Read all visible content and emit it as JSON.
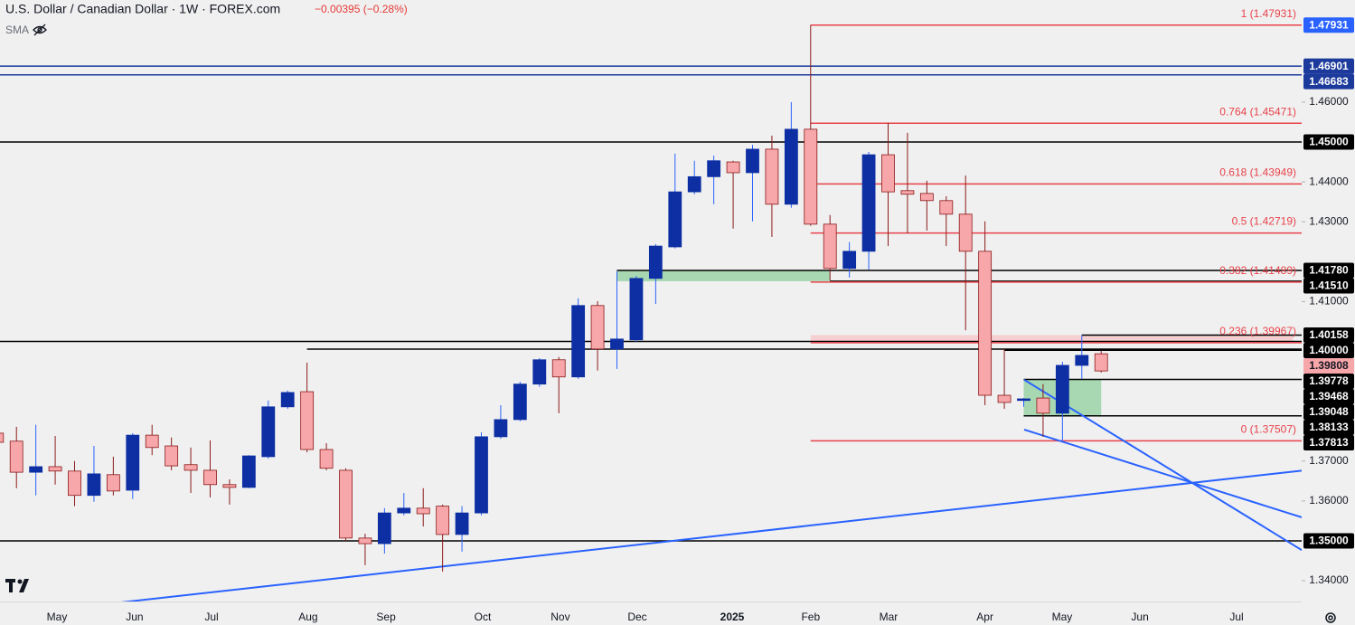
{
  "chart_data": {
    "type": "candlestick",
    "title": "U.S. Dollar / Canadian Dollar · 1W · FOREX.com",
    "change": "−0.00395 (−0.28%)",
    "indicator": "SMA",
    "xlim": [
      0.15,
      67.35
    ],
    "ylim": [
      1.3348,
      1.4856
    ],
    "yticks": [
      {
        "value": 1.46,
        "label": "1.46000"
      },
      {
        "value": 1.44,
        "label": "1.44000"
      },
      {
        "value": 1.43,
        "label": "1.43000"
      },
      {
        "value": 1.41,
        "label": "1.41000"
      },
      {
        "value": 1.37,
        "label": "1.37000"
      },
      {
        "value": 1.36,
        "label": "1.36000"
      },
      {
        "value": 1.34,
        "label": "1.34000"
      }
    ],
    "xticks": [
      {
        "value": 3.09,
        "label": "May"
      },
      {
        "value": 7.1,
        "label": "Jun"
      },
      {
        "value": 11.07,
        "label": "Jul"
      },
      {
        "value": 16.06,
        "label": "Aug"
      },
      {
        "value": 20.08,
        "label": "Sep"
      },
      {
        "value": 25.07,
        "label": "Oct"
      },
      {
        "value": 29.08,
        "label": "Nov"
      },
      {
        "value": 33.05,
        "label": "Dec"
      },
      {
        "value": 37.95,
        "label": "2025",
        "bold": true
      },
      {
        "value": 42.0,
        "label": "Feb"
      },
      {
        "value": 46.02,
        "label": "Mar"
      },
      {
        "value": 51.0,
        "label": "Apr"
      },
      {
        "value": 54.98,
        "label": "May"
      },
      {
        "value": 59.0,
        "label": "Jun"
      },
      {
        "value": 63.99,
        "label": "Jul"
      }
    ],
    "up_color": "#0d2fa3",
    "up_wick": "#2962ff",
    "down_color": "#f7a6aa",
    "down_wick": "#8b1a1a",
    "candles": {
      "x": [
        0,
        1,
        2,
        3,
        4,
        5,
        6,
        7,
        8,
        9,
        10,
        11,
        12,
        13,
        14,
        15,
        16,
        17,
        18,
        19,
        20,
        21,
        22,
        23,
        24,
        25,
        26,
        27,
        28,
        29,
        30,
        31,
        32,
        33,
        34,
        35,
        36,
        37,
        38,
        39,
        40,
        41,
        42,
        43,
        44,
        45,
        46,
        47,
        48,
        49,
        50,
        51,
        52,
        53,
        54,
        55,
        56,
        57
      ],
      "open": [
        1.377,
        1.375,
        1.3672,
        1.3686,
        1.3675,
        1.3614,
        1.3666,
        1.3627,
        1.3765,
        1.3738,
        1.3691,
        1.3677,
        1.3641,
        1.3634,
        1.3711,
        1.3836,
        1.3874,
        1.3729,
        1.3677,
        1.3507,
        1.3493,
        1.357,
        1.3582,
        1.3587,
        1.3516,
        1.357,
        1.3761,
        1.3804,
        1.3893,
        1.3954,
        1.3911,
        1.409,
        1.3981,
        1.4004,
        1.4158,
        1.4237,
        1.4375,
        1.4413,
        1.445,
        1.4423,
        1.4482,
        1.4344,
        1.4532,
        1.4294,
        1.4183,
        1.4226,
        1.4468,
        1.4378,
        1.4371,
        1.4353,
        1.4319,
        1.4226,
        1.3865,
        1.3852,
        1.3858,
        1.382,
        1.394,
        1.3969
      ],
      "high": [
        1.3786,
        1.3786,
        1.3791,
        1.3763,
        1.37,
        1.3738,
        1.3711,
        1.377,
        1.3791,
        1.3759,
        1.3734,
        1.3752,
        1.3654,
        1.3715,
        1.3852,
        1.3877,
        1.3947,
        1.3745,
        1.3682,
        1.3518,
        1.3582,
        1.362,
        1.3632,
        1.3591,
        1.3587,
        1.3772,
        1.384,
        1.3899,
        1.3958,
        1.3961,
        1.4108,
        1.4101,
        1.4176,
        1.4164,
        1.4244,
        1.4471,
        1.4453,
        1.4466,
        1.4453,
        1.4493,
        1.4516,
        1.46,
        1.4793,
        1.4317,
        1.4249,
        1.4475,
        1.4548,
        1.4523,
        1.4403,
        1.4364,
        1.4416,
        1.4301,
        1.3981,
        1.3858,
        1.3893,
        1.3949,
        1.4016,
        1.3976
      ],
      "low": [
        1.3734,
        1.3632,
        1.3614,
        1.3641,
        1.3587,
        1.3598,
        1.3614,
        1.3605,
        1.3715,
        1.3677,
        1.362,
        1.3609,
        1.3591,
        1.3632,
        1.3706,
        1.3831,
        1.3722,
        1.3677,
        1.35,
        1.3439,
        1.3468,
        1.3564,
        1.3536,
        1.3423,
        1.3473,
        1.3564,
        1.3756,
        1.38,
        1.3886,
        1.382,
        1.3906,
        1.3927,
        1.3931,
        1.3999,
        1.4094,
        1.4233,
        1.4369,
        1.4344,
        1.4283,
        1.4301,
        1.4262,
        1.4335,
        1.429,
        1.4153,
        1.416,
        1.418,
        1.4239,
        1.4271,
        1.4278,
        1.4239,
        1.4028,
        1.384,
        1.3831,
        1.3836,
        1.3761,
        1.375,
        1.3906,
        1.3922
      ],
      "close": [
        1.3747,
        1.3672,
        1.3686,
        1.3675,
        1.3614,
        1.3668,
        1.3625,
        1.3765,
        1.3734,
        1.3688,
        1.3677,
        1.3641,
        1.3634,
        1.3713,
        1.3836,
        1.3872,
        1.3729,
        1.3682,
        1.3507,
        1.3493,
        1.357,
        1.3582,
        1.3568,
        1.3516,
        1.357,
        1.3761,
        1.3804,
        1.3893,
        1.3954,
        1.3911,
        1.409,
        1.3981,
        1.4006,
        1.4158,
        1.4239,
        1.4375,
        1.4413,
        1.4453,
        1.4423,
        1.4482,
        1.4344,
        1.4532,
        1.4294,
        1.4183,
        1.4226,
        1.4468,
        1.4375,
        1.4369,
        1.4353,
        1.4319,
        1.4226,
        1.3865,
        1.3847,
        1.3856,
        1.382,
        1.394,
        1.3965,
        1.3926
      ]
    },
    "zones": [
      {
        "low": 1.4151,
        "high": 1.4178,
        "from": 32,
        "to": 43,
        "color": "#9ad3a6"
      },
      {
        "low": 1.4,
        "high": 1.40158,
        "from": 42,
        "to": 66.9,
        "color": "#f7c9cb"
      },
      {
        "low": 1.38133,
        "high": 1.39048,
        "from": 53,
        "to": 57,
        "color": "#9ad3a6"
      }
    ],
    "trendlines": [
      {
        "points": [
          [
            5.52,
            1.3341
          ],
          [
            67.35,
            1.3676
          ]
        ],
        "color": "#2962ff"
      },
      {
        "points": [
          [
            53.02,
            1.3904
          ],
          [
            67.35,
            1.3477
          ]
        ],
        "color": "#2962ff"
      },
      {
        "points": [
          [
            53.02,
            1.3779
          ],
          [
            67.35,
            1.3559
          ]
        ],
        "color": "#2962ff"
      }
    ],
    "fib": {
      "from": 42,
      "color": "#e8434b",
      "levels": [
        {
          "value": 1.47931,
          "label": "1 (1.47931)"
        },
        {
          "value": 1.45471,
          "label": "0.764 (1.45471)"
        },
        {
          "value": 1.43949,
          "label": "0.618 (1.43949)"
        },
        {
          "value": 1.42719,
          "label": "0.5 (1.42719)"
        },
        {
          "value": 1.41489,
          "label": "0.382 (1.41489)"
        },
        {
          "value": 1.39967,
          "label": "0.236 (1.39967)"
        },
        {
          "value": 1.37507,
          "label": "0 (1.37507)"
        }
      ]
    },
    "levels": [
      {
        "value": 1.47931,
        "label": "1.47931",
        "color": "#2962ff",
        "text_color": "#ffffff"
      },
      {
        "value": 1.46901,
        "label": "1.46901",
        "color": "#1c3a9c",
        "text_color": "#ffffff",
        "from": 0.15
      },
      {
        "value": 1.46683,
        "label": "1.46683",
        "color": "#1c3a9c",
        "text_color": "#ffffff",
        "from": 0.15
      },
      {
        "value": 1.45,
        "label": "1.45000",
        "color": "#000000",
        "text_color": "#ffffff",
        "from": 0.15
      },
      {
        "value": 1.4178,
        "label": "1.41780",
        "color": "#000000",
        "text_color": "#ffffff",
        "from": 32
      },
      {
        "value": 1.4151,
        "label": "1.41510",
        "color": "#000000",
        "text_color": "#ffffff",
        "from": 43
      },
      {
        "value": 1.40158,
        "label": "1.40158",
        "color": "#000000",
        "text_color": "#ffffff",
        "from": 56
      },
      {
        "value": 1.4,
        "label": "1.40000",
        "color": "#000000",
        "text_color": "#ffffff",
        "from": 0.15
      },
      {
        "value": 1.39808,
        "label": "1.39808",
        "color": "#f7a6aa",
        "text_color": "#131722",
        "line_color": "#000000",
        "from": 16
      },
      {
        "value": 1.39778,
        "label": "1.39778",
        "color": "#000000",
        "text_color": "#ffffff",
        "from": 52
      },
      {
        "value": 1.39468,
        "label": "1.39468",
        "color": "#000000",
        "text_color": "#ffffff"
      },
      {
        "value": 1.39048,
        "label": "1.39048",
        "color": "#000000",
        "text_color": "#ffffff",
        "from": 53
      },
      {
        "value": 1.38133,
        "label": "1.38133",
        "color": "#000000",
        "text_color": "#ffffff",
        "from": 53
      },
      {
        "value": 1.37813,
        "label": "1.37813",
        "color": "#000000",
        "text_color": "#ffffff"
      },
      {
        "value": 1.35,
        "label": "1.35000",
        "color": "#000000",
        "text_color": "#ffffff",
        "from": 0.15
      }
    ]
  }
}
